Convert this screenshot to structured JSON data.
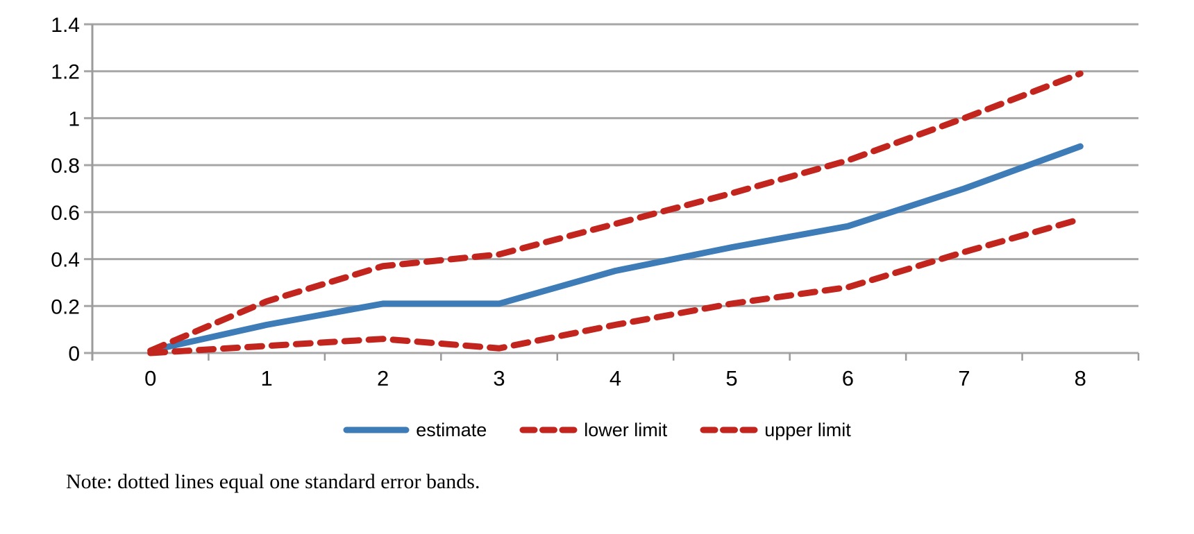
{
  "figure": {
    "legend": {
      "items": [
        {
          "label": "estimate",
          "style": "solid",
          "color": "#3E7CB8"
        },
        {
          "label": "lower limit",
          "style": "dashed",
          "color": "#C2251D"
        },
        {
          "label": "upper limit",
          "style": "dashed",
          "color": "#C2251D"
        }
      ]
    },
    "note": "Note: dotted lines equal one standard error bands."
  },
  "colors": {
    "estimate": "#3E7CB8",
    "band": "#C2251D",
    "gridline": "#A6A6A6",
    "axis": "#9B9B9B",
    "text": "#000000"
  },
  "chart_data": {
    "type": "line",
    "title": "",
    "xlabel": "",
    "ylabel": "",
    "categories": [
      0,
      1,
      2,
      3,
      4,
      5,
      6,
      7,
      8
    ],
    "x_tick_labels": [
      "0",
      "1",
      "2",
      "3",
      "4",
      "5",
      "6",
      "7",
      "8"
    ],
    "ylim": [
      0,
      1.4
    ],
    "y_ticks": [
      0,
      0.2,
      0.4,
      0.6,
      0.8,
      1,
      1.2,
      1.4
    ],
    "y_tick_labels": [
      "0",
      "0.2",
      "0.4",
      "0.6",
      "0.8",
      "1",
      "1.2",
      "1.4"
    ],
    "grid": true,
    "legend_position": "bottom",
    "series": [
      {
        "name": "estimate",
        "color": "#3E7CB8",
        "dash": false,
        "values": [
          0.01,
          0.12,
          0.21,
          0.21,
          0.35,
          0.45,
          0.54,
          0.7,
          0.88
        ]
      },
      {
        "name": "lower limit",
        "color": "#C2251D",
        "dash": true,
        "values": [
          0.0,
          0.03,
          0.06,
          0.02,
          0.12,
          0.21,
          0.28,
          0.43,
          0.57
        ]
      },
      {
        "name": "upper limit",
        "color": "#C2251D",
        "dash": true,
        "values": [
          0.01,
          0.22,
          0.37,
          0.42,
          0.55,
          0.68,
          0.82,
          1.0,
          1.19
        ]
      }
    ],
    "note": "Note: dotted lines equal one standard error bands."
  }
}
